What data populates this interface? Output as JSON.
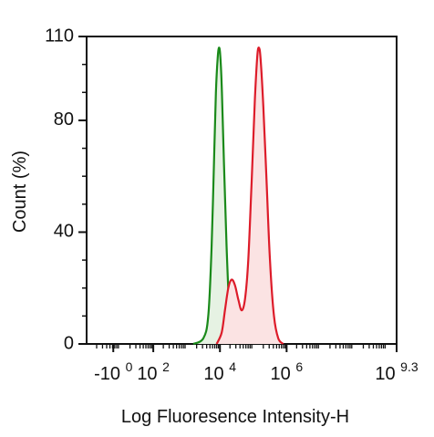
{
  "chart_data": {
    "type": "area",
    "title": "",
    "xlabel": "Log Fluoresence Intensity-H",
    "ylabel": "Count  (%)",
    "x_scale": "log",
    "xlim": [
      0,
      9.3
    ],
    "ylim": [
      0,
      110
    ],
    "yticks": [
      0,
      40,
      80,
      110
    ],
    "xticks": [
      {
        "base": "-10",
        "exp": "0",
        "pos": 0.8
      },
      {
        "base": "10",
        "exp": "2",
        "pos": 2
      },
      {
        "base": "10",
        "exp": "4",
        "pos": 4
      },
      {
        "base": "10",
        "exp": "6",
        "pos": 6
      },
      {
        "base": "10",
        "exp": "9.3",
        "pos": 9.3
      }
    ],
    "grid": false,
    "legend": "none",
    "series": [
      {
        "color": "#1a8a1a",
        "fill": "#e6f2e3",
        "points": [
          [
            3.2,
            0
          ],
          [
            3.5,
            2
          ],
          [
            3.65,
            10
          ],
          [
            3.75,
            35
          ],
          [
            3.82,
            65
          ],
          [
            3.88,
            90
          ],
          [
            3.93,
            102
          ],
          [
            3.97,
            106
          ],
          [
            4.01,
            103
          ],
          [
            4.06,
            90
          ],
          [
            4.12,
            65
          ],
          [
            4.2,
            35
          ],
          [
            4.28,
            12
          ],
          [
            4.36,
            2
          ],
          [
            4.45,
            0
          ]
        ]
      },
      {
        "color": "#dd1c2a",
        "fill": "#fbe3e3",
        "points": [
          [
            3.9,
            0
          ],
          [
            4.05,
            4
          ],
          [
            4.15,
            12
          ],
          [
            4.25,
            20
          ],
          [
            4.35,
            23
          ],
          [
            4.45,
            21
          ],
          [
            4.55,
            16
          ],
          [
            4.65,
            12
          ],
          [
            4.75,
            16
          ],
          [
            4.85,
            30
          ],
          [
            4.95,
            58
          ],
          [
            5.05,
            88
          ],
          [
            5.12,
            103
          ],
          [
            5.17,
            106
          ],
          [
            5.22,
            102
          ],
          [
            5.3,
            85
          ],
          [
            5.4,
            58
          ],
          [
            5.5,
            30
          ],
          [
            5.62,
            10
          ],
          [
            5.75,
            2
          ],
          [
            5.9,
            0
          ]
        ]
      }
    ]
  }
}
